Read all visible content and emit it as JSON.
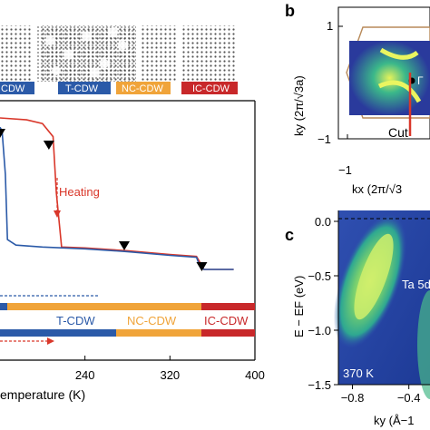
{
  "panels": {
    "b": "b",
    "c": "c"
  },
  "phase_bar_top": [
    "CDW",
    "T-CDW",
    "NC-CDW",
    "IC-CDW"
  ],
  "phase_bar_bottom": [
    "T-CDW",
    "NC-CDW",
    "IC-CDW"
  ],
  "heating_label": "Heating",
  "colors": {
    "blue": "#2b5aa8",
    "red": "#d9372a",
    "orange": "#f0a43a",
    "dark_red": "#c8282a"
  },
  "chart_data": [
    {
      "type": "line",
      "xlabel": "emperature (K)",
      "xlim": [
        160,
        400
      ],
      "x_ticks": [
        "240",
        "320",
        "400"
      ],
      "x_tick_values": [
        240,
        320,
        400
      ],
      "series": [
        {
          "color": "#d9372a",
          "points": [
            [
              160,
              1.0
            ],
            [
              185,
              0.99
            ],
            [
              200,
              0.97
            ],
            [
              210,
              0.9
            ],
            [
              213,
              0.6
            ],
            [
              218,
              0.31
            ],
            [
              240,
              0.305
            ],
            [
              280,
              0.29
            ],
            [
              320,
              0.27
            ],
            [
              345,
              0.26
            ],
            [
              349,
              0.22
            ],
            [
              352,
              0.19
            ],
            [
              380,
              0.19
            ]
          ]
        },
        {
          "color": "#2b5aa8",
          "points": [
            [
              160,
              0.95
            ],
            [
              162,
              0.93
            ],
            [
              165,
              0.7
            ],
            [
              167,
              0.35
            ],
            [
              175,
              0.32
            ],
            [
              200,
              0.31
            ],
            [
              240,
              0.3
            ],
            [
              280,
              0.285
            ],
            [
              320,
              0.265
            ],
            [
              345,
              0.255
            ],
            [
              348,
              0.21
            ],
            [
              352,
              0.19
            ],
            [
              380,
              0.19
            ]
          ]
        }
      ],
      "arrow_markers_x": [
        160,
        206,
        277,
        350
      ]
    },
    {
      "type": "heatmap",
      "panel": "b",
      "xlabel": "kx (2π/√3",
      "ylabel": "ky (2π/√3a)",
      "x_ticks": [
        "−1"
      ],
      "y_ticks": [
        "1",
        "−1"
      ],
      "annotations": [
        "Cut",
        "Γ"
      ]
    },
    {
      "type": "heatmap",
      "panel": "c",
      "xlabel": "ky (Å−1",
      "ylabel": "E − EF (eV)",
      "xlim": [
        -0.9,
        -0.25
      ],
      "ylim": [
        -1.5,
        0.1
      ],
      "x_ticks": [
        "−0.8",
        "−0.4"
      ],
      "x_tick_values": [
        -0.8,
        -0.4
      ],
      "y_ticks": [
        "0.0",
        "−0.5",
        "−1.0",
        "−1.5"
      ],
      "y_tick_values": [
        0.0,
        -0.5,
        -1.0,
        -1.5
      ],
      "annotations": [
        "Ta 5d",
        "370 K"
      ]
    }
  ]
}
